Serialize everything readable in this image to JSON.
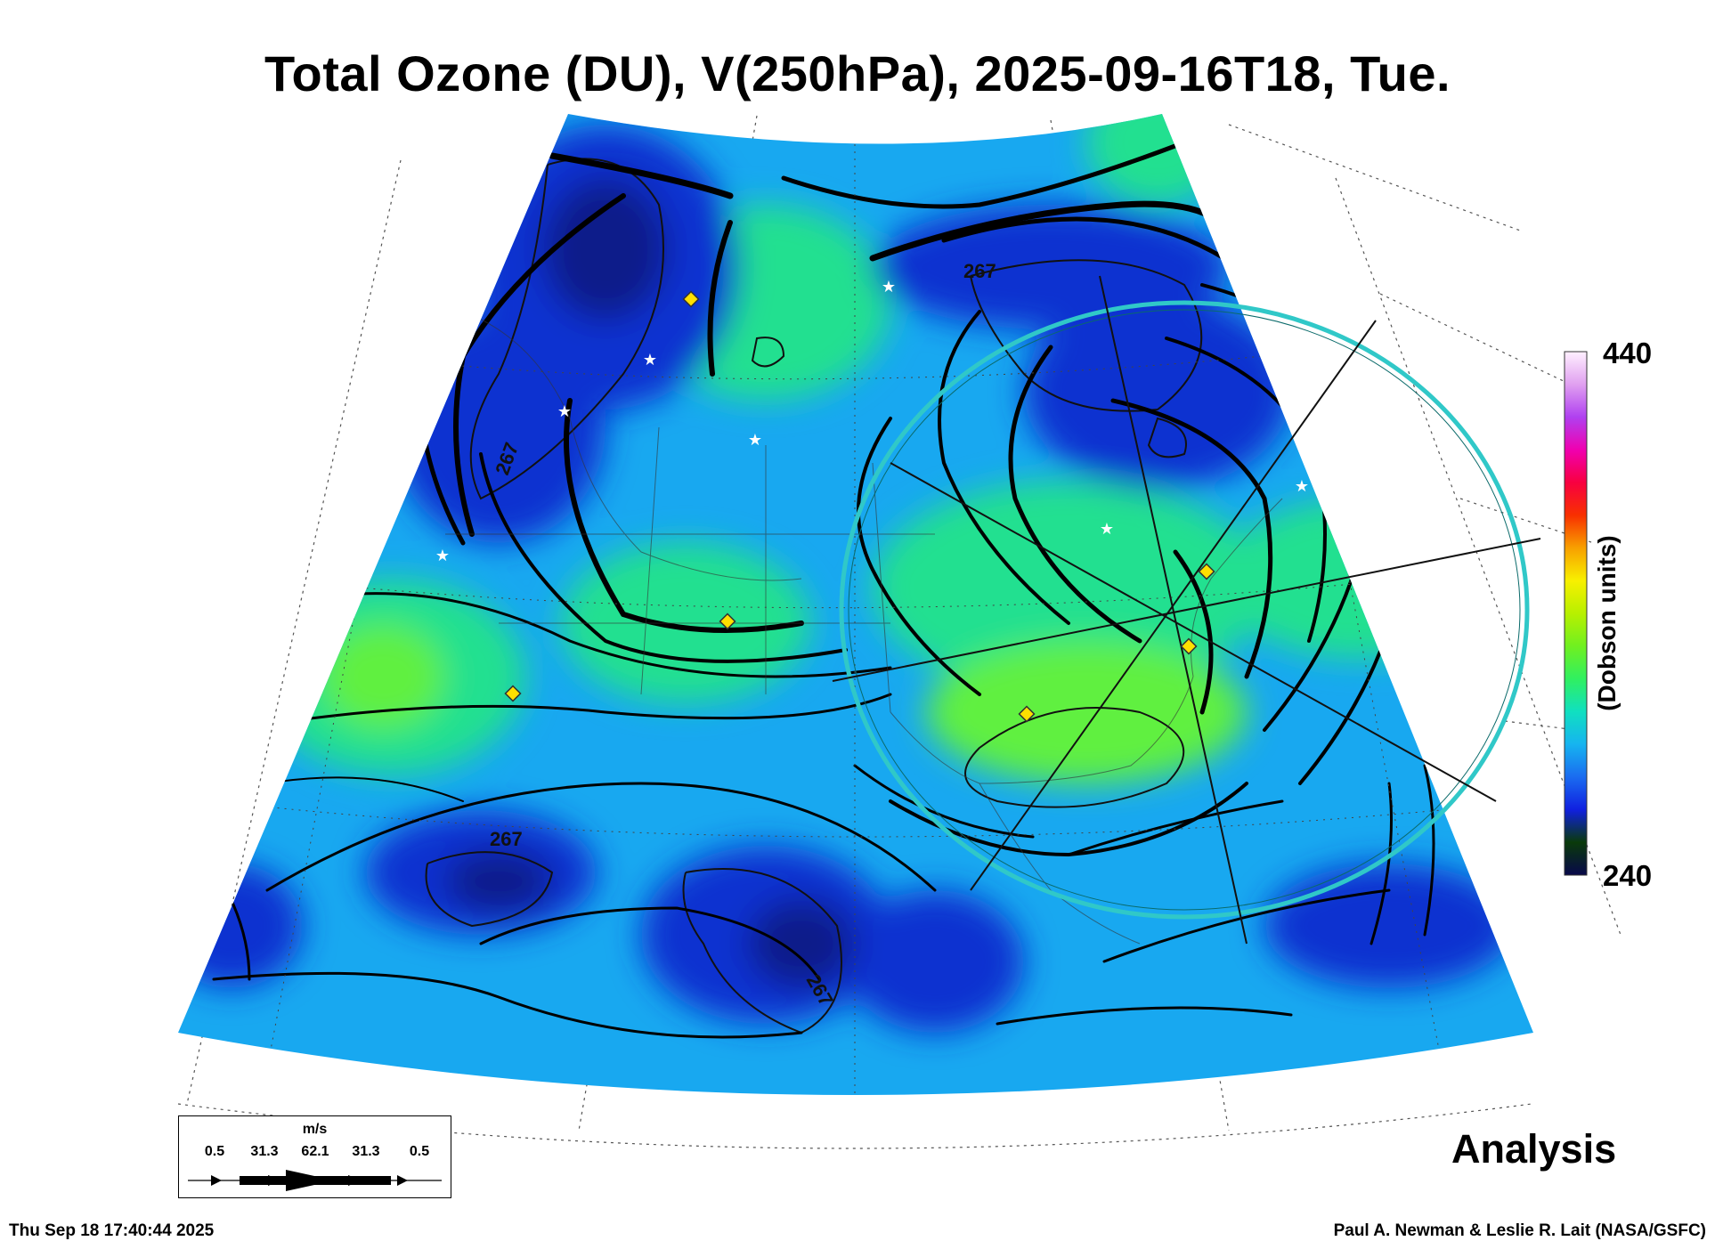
{
  "title": "Total Ozone (DU), V(250hPa), 2025-09-16T18, Tue.",
  "colorbar": {
    "max_label": "440",
    "min_label": "240",
    "label": "(Dobson units)",
    "colors": [
      "#08084a",
      "#0a3a0a",
      "#1020e0",
      "#1a6cf0",
      "#16b4f0",
      "#10e0c0",
      "#30f060",
      "#70f020",
      "#b8f000",
      "#f8f000",
      "#f8a000",
      "#f83000",
      "#f80040",
      "#f000b0",
      "#b040f0",
      "#e0a0f0",
      "#fff0ff"
    ]
  },
  "contour_label": "267",
  "analysis_label": "Analysis",
  "wind_legend": {
    "unit": "m/s",
    "values": [
      "0.5",
      "31.3",
      "62.1",
      "31.3",
      "0.5"
    ]
  },
  "footer": {
    "timestamp": "Thu Sep 18 17:40:44 2025",
    "credit": "Paul A. Newman & Leslie R. Lait (NASA/GSFC)"
  },
  "map_colors": {
    "base": "#18a8f0",
    "low": "#1030d0",
    "very_low": "#0a1a8a",
    "high": "#20e090",
    "higher": "#60f040",
    "ring": "#30c8c8"
  }
}
